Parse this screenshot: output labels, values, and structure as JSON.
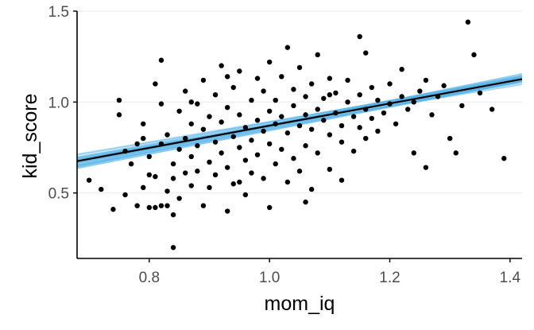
{
  "chart_data": {
    "type": "scatter",
    "title": "",
    "xlabel": "mom_iq",
    "ylabel": "kid_score",
    "xlim": [
      0.68,
      1.42
    ],
    "ylim": [
      0.14,
      1.5
    ],
    "x_ticks": [
      0.8,
      1.0,
      1.2,
      1.4
    ],
    "x_tick_labels": [
      "0.8",
      "1.0",
      "1.2",
      "1.4"
    ],
    "y_ticks": [
      0.5,
      1.0,
      1.5
    ],
    "y_tick_labels": [
      "0.5",
      "1.0",
      "1.5"
    ],
    "grid": "horizontal major only",
    "legend": "none",
    "colors": {
      "points": "#000000",
      "fit_line": "#000000",
      "posterior_lines": "#56B4E9",
      "grid": "#ebebeb",
      "axis": "#000000"
    },
    "fit_line": {
      "intercept": 0.26,
      "slope": 0.61
    },
    "posterior_band": {
      "intercept_range": [
        0.18,
        0.34
      ],
      "slope_range": [
        0.53,
        0.69
      ],
      "draws": 60
    },
    "points": [
      [
        0.7,
        0.57
      ],
      [
        0.72,
        0.52
      ],
      [
        0.74,
        0.41
      ],
      [
        0.75,
        1.01
      ],
      [
        0.75,
        0.93
      ],
      [
        0.76,
        0.49
      ],
      [
        0.76,
        0.73
      ],
      [
        0.77,
        0.66
      ],
      [
        0.78,
        0.77
      ],
      [
        0.78,
        0.43
      ],
      [
        0.79,
        0.53
      ],
      [
        0.79,
        0.88
      ],
      [
        0.8,
        0.42
      ],
      [
        0.8,
        0.7
      ],
      [
        0.8,
        0.6
      ],
      [
        0.81,
        0.42
      ],
      [
        0.81,
        1.1
      ],
      [
        0.81,
        0.59
      ],
      [
        0.82,
        0.43
      ],
      [
        0.82,
        0.77
      ],
      [
        0.82,
        1.23
      ],
      [
        0.82,
        0.99
      ],
      [
        0.83,
        0.51
      ],
      [
        0.83,
        0.43
      ],
      [
        0.83,
        0.82
      ],
      [
        0.84,
        0.66
      ],
      [
        0.84,
        0.38
      ],
      [
        0.84,
        0.2
      ],
      [
        0.84,
        0.58
      ],
      [
        0.85,
        0.95
      ],
      [
        0.85,
        0.47
      ],
      [
        0.85,
        0.74
      ],
      [
        0.86,
        0.8
      ],
      [
        0.86,
        0.61
      ],
      [
        0.86,
        1.06
      ],
      [
        0.87,
        0.88
      ],
      [
        0.87,
        0.7
      ],
      [
        0.87,
        0.54
      ],
      [
        0.88,
        0.99
      ],
      [
        0.88,
        0.76
      ],
      [
        0.88,
        0.62
      ],
      [
        0.89,
        1.12
      ],
      [
        0.89,
        0.85
      ],
      [
        0.89,
        0.43
      ],
      [
        0.9,
        0.92
      ],
      [
        0.9,
        0.67
      ],
      [
        0.9,
        0.53
      ],
      [
        0.91,
        1.04
      ],
      [
        0.91,
        0.78
      ],
      [
        0.91,
        0.6
      ],
      [
        0.92,
        0.89
      ],
      [
        0.92,
        1.2
      ],
      [
        0.92,
        0.72
      ],
      [
        0.93,
        0.97
      ],
      [
        0.93,
        0.64
      ],
      [
        0.93,
        0.4
      ],
      [
        0.94,
        0.81
      ],
      [
        0.94,
        1.08
      ],
      [
        0.94,
        0.55
      ],
      [
        0.95,
        0.93
      ],
      [
        0.95,
        0.75
      ],
      [
        0.95,
        1.17
      ],
      [
        0.96,
        0.86
      ],
      [
        0.96,
        0.68
      ],
      [
        0.96,
        0.49
      ],
      [
        0.97,
        1.01
      ],
      [
        0.97,
        0.79
      ],
      [
        0.97,
        0.61
      ],
      [
        0.98,
        0.9
      ],
      [
        0.98,
        1.13
      ],
      [
        0.98,
        0.71
      ],
      [
        0.99,
        0.84
      ],
      [
        0.99,
        1.06
      ],
      [
        0.99,
        0.58
      ],
      [
        1.0,
        0.95
      ],
      [
        1.0,
        0.77
      ],
      [
        1.0,
        1.22
      ],
      [
        1.0,
        0.42
      ],
      [
        1.01,
        0.88
      ],
      [
        1.01,
        1.01
      ],
      [
        1.01,
        0.66
      ],
      [
        1.02,
        0.92
      ],
      [
        1.02,
        1.14
      ],
      [
        1.02,
        0.74
      ],
      [
        1.03,
        1.3
      ],
      [
        1.03,
        0.83
      ],
      [
        1.03,
        0.56
      ],
      [
        1.04,
        0.98
      ],
      [
        1.04,
        1.07
      ],
      [
        1.04,
        0.69
      ],
      [
        1.05,
        0.87
      ],
      [
        1.05,
        1.19
      ],
      [
        1.05,
        0.62
      ],
      [
        1.06,
        0.93
      ],
      [
        1.06,
        1.03
      ],
      [
        1.06,
        0.76
      ],
      [
        1.07,
        0.85
      ],
      [
        1.07,
        1.1
      ],
      [
        1.07,
        0.52
      ],
      [
        1.08,
        0.96
      ],
      [
        1.08,
        1.26
      ],
      [
        1.08,
        0.72
      ],
      [
        1.09,
        0.9
      ],
      [
        1.09,
        1.02
      ],
      [
        1.1,
        0.82
      ],
      [
        1.1,
        0.63
      ],
      [
        1.1,
        1.13
      ],
      [
        1.11,
        0.94
      ],
      [
        1.11,
        1.05
      ],
      [
        1.12,
        0.87
      ],
      [
        1.12,
        0.78
      ],
      [
        1.12,
        0.57
      ],
      [
        1.13,
        1.0
      ],
      [
        1.13,
        1.12
      ],
      [
        1.14,
        0.92
      ],
      [
        1.14,
        0.73
      ],
      [
        1.15,
        1.04
      ],
      [
        1.15,
        0.86
      ],
      [
        1.15,
        1.36
      ],
      [
        1.16,
        0.96
      ],
      [
        1.16,
        0.8
      ],
      [
        1.17,
        1.08
      ],
      [
        1.17,
        0.91
      ],
      [
        1.18,
        1.01
      ],
      [
        1.18,
        0.84
      ],
      [
        1.19,
        0.94
      ],
      [
        1.2,
        1.1
      ],
      [
        1.2,
        0.99
      ],
      [
        1.21,
        0.88
      ],
      [
        1.22,
        1.18
      ],
      [
        1.22,
        1.03
      ],
      [
        1.23,
        0.96
      ],
      [
        1.24,
        0.72
      ],
      [
        1.25,
        1.06
      ],
      [
        1.26,
        1.12
      ],
      [
        1.26,
        0.64
      ],
      [
        1.27,
        0.93
      ],
      [
        1.28,
        1.03
      ],
      [
        1.29,
        1.09
      ],
      [
        1.31,
        0.72
      ],
      [
        1.32,
        0.98
      ],
      [
        1.33,
        1.44
      ],
      [
        1.34,
        1.26
      ],
      [
        1.35,
        1.05
      ],
      [
        1.37,
        0.96
      ],
      [
        1.39,
        0.69
      ],
      [
        0.79,
        0.8
      ],
      [
        0.87,
        1.0
      ],
      [
        0.93,
        1.14
      ],
      [
        0.95,
        0.56
      ],
      [
        1.06,
        0.45
      ],
      [
        1.1,
        1.04
      ],
      [
        1.16,
        1.27
      ],
      [
        1.24,
        1.0
      ],
      [
        1.3,
        0.8
      ]
    ]
  }
}
